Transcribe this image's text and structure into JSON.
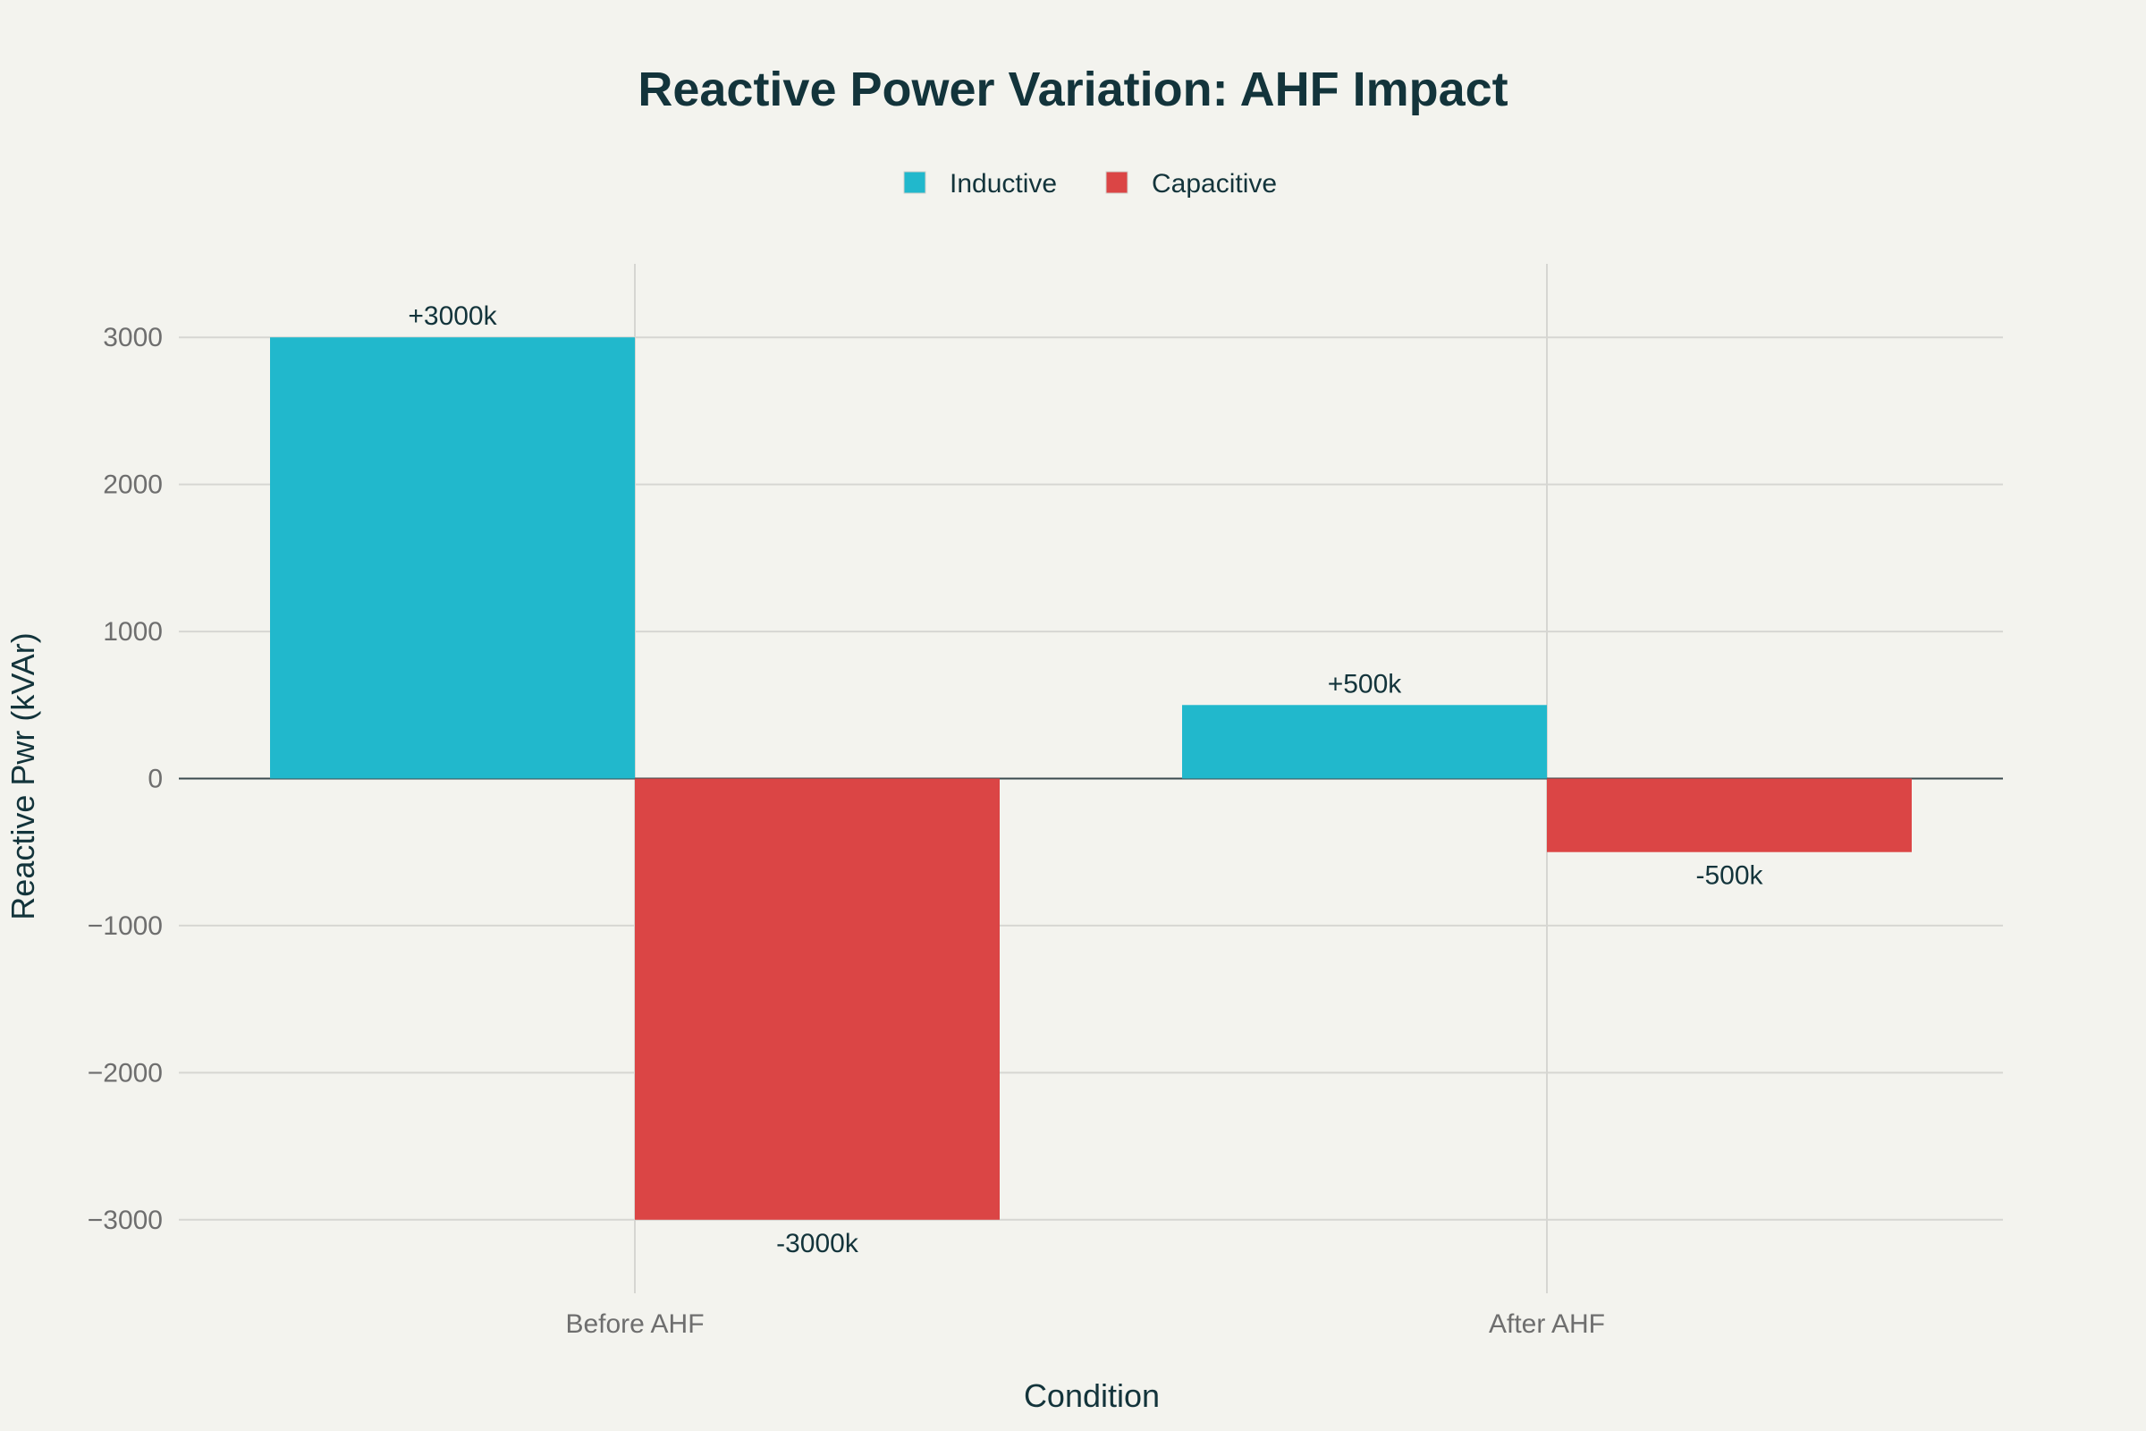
{
  "chart_data": {
    "type": "bar",
    "title": "Reactive Power Variation: AHF Impact",
    "xlabel": "Condition",
    "ylabel": "Reactive Pwr (kVAr)",
    "categories": [
      "Before AHF",
      "After AHF"
    ],
    "series": [
      {
        "name": "Inductive",
        "values": [
          3000,
          500
        ],
        "labels": [
          "+3000k",
          "+500k"
        ],
        "color": "#21B8CC"
      },
      {
        "name": "Capacitive",
        "values": [
          -3000,
          -500
        ],
        "labels": [
          "-3000k",
          "-500k"
        ],
        "color": "#DB4545"
      }
    ],
    "ylim": [
      -3500,
      3500
    ],
    "yticks": [
      3000,
      2000,
      1000,
      0,
      -1000,
      -2000,
      -3000
    ],
    "ytick_labels": [
      "3000",
      "2000",
      "1000",
      "0",
      "−1000",
      "−2000",
      "−3000"
    ],
    "grid": true,
    "legend": "top-center",
    "background": "#F3F3EE"
  }
}
